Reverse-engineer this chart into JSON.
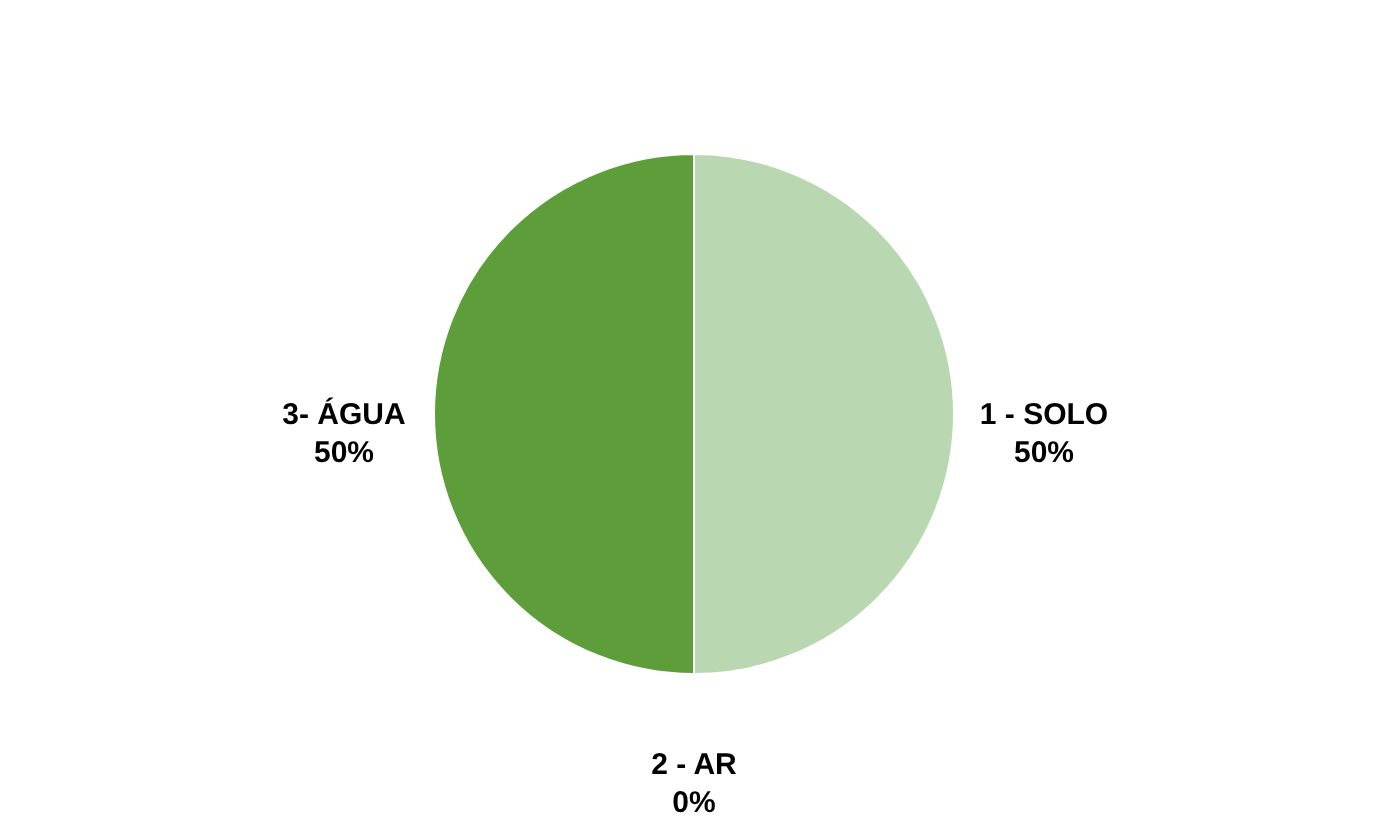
{
  "chart_data": {
    "type": "pie",
    "categories": [
      "1 - SOLO",
      "2 - AR",
      "3- ÁGUA"
    ],
    "values": [
      50,
      0,
      50
    ],
    "value_labels": [
      "50%",
      "0%",
      "50%"
    ],
    "colors": [
      "#b9d7b0",
      "#8cbf6e",
      "#5e9e3a"
    ],
    "legend": false
  }
}
